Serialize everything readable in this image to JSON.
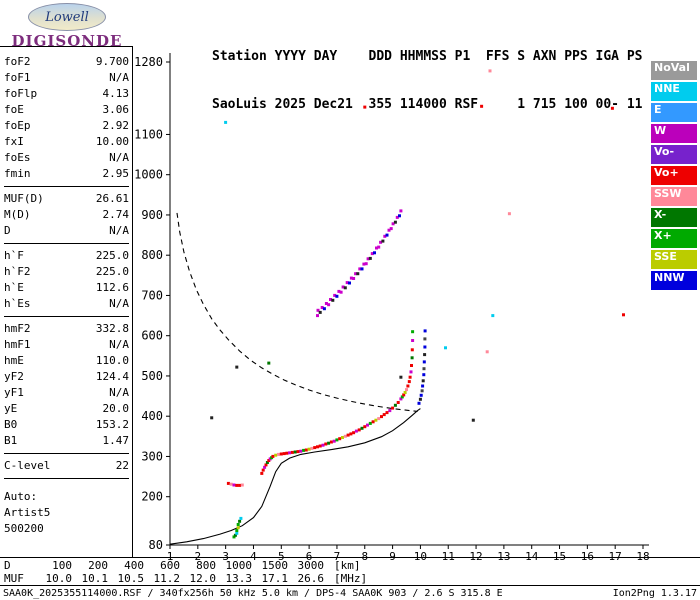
{
  "logo": {
    "brand": "Lowell",
    "product": "DIGISONDE"
  },
  "header": {
    "line1": "Station YYYY DAY    DDD HHMMSS P1  FFS S AXN PPS IGA PS",
    "line2": "SaoLuis 2025 Dec21  355 114000 RSF     1 715 100 00- 11"
  },
  "left_panel": {
    "groups": [
      {
        "rows": [
          [
            "foF2",
            "9.700"
          ],
          [
            "foF1",
            "N/A"
          ],
          [
            "foFlp",
            "4.13"
          ],
          [
            "foE",
            "3.06"
          ],
          [
            "foEp",
            "2.92"
          ],
          [
            "fxI",
            "10.00"
          ],
          [
            "foEs",
            "N/A"
          ],
          [
            "fmin",
            "2.95"
          ]
        ]
      },
      {
        "rows": [
          [
            "MUF(D)",
            "26.61"
          ],
          [
            "M(D)",
            "2.74"
          ],
          [
            "D",
            "N/A"
          ]
        ]
      },
      {
        "rows": [
          [
            "h`F",
            "225.0"
          ],
          [
            "h`F2",
            "225.0"
          ],
          [
            "h`E",
            "112.6"
          ],
          [
            "h`Es",
            "N/A"
          ]
        ]
      },
      {
        "rows": [
          [
            "hmF2",
            "332.8"
          ],
          [
            "hmF1",
            "N/A"
          ],
          [
            "hmE",
            "110.0"
          ],
          [
            "yF2",
            "124.4"
          ],
          [
            "yF1",
            "N/A"
          ],
          [
            "yE",
            "20.0"
          ],
          [
            "B0",
            "153.2"
          ],
          [
            "B1",
            "1.47"
          ]
        ]
      },
      {
        "rows": [
          [
            "C-level",
            "22"
          ]
        ]
      }
    ],
    "footer": [
      "Auto:",
      "Artist5",
      "500200"
    ]
  },
  "legend": [
    {
      "label": "NoVal",
      "color": "#9A9A9A"
    },
    {
      "label": "NNE",
      "color": "#00CCEE"
    },
    {
      "label": "E",
      "color": "#3399FF"
    },
    {
      "label": "W",
      "color": "#BB00BB"
    },
    {
      "label": "Vo-",
      "color": "#7722CC"
    },
    {
      "label": "Vo+",
      "color": "#EE0000"
    },
    {
      "label": "SSW",
      "color": "#FF8899"
    },
    {
      "label": "X-",
      "color": "#007700"
    },
    {
      "label": "X+",
      "color": "#00AA00"
    },
    {
      "label": "SSE",
      "color": "#BBCC00"
    },
    {
      "label": "NNW",
      "color": "#0000DD"
    }
  ],
  "chart_data": {
    "type": "scatter",
    "xlim": [
      1,
      18
    ],
    "ylim": [
      80,
      1280
    ],
    "x_ticks": [
      1,
      2,
      3,
      4,
      5,
      6,
      7,
      8,
      9,
      10,
      11,
      12,
      13,
      14,
      15,
      16,
      17,
      18
    ],
    "y_ticks": [
      80,
      200,
      300,
      400,
      500,
      600,
      700,
      800,
      900,
      1000,
      1100,
      1280
    ],
    "x_unit": "MHz",
    "y_unit": "km",
    "grid": false,
    "traces": [
      {
        "name": "f-trace-start",
        "palette": [
          "#EE0000",
          "#FF8899",
          "#CC00CC",
          "#EE0000"
        ],
        "points": [
          [
            3.1,
            233
          ],
          [
            3.2,
            231
          ],
          [
            3.3,
            229
          ],
          [
            3.4,
            228
          ],
          [
            3.5,
            228
          ],
          [
            3.6,
            229
          ]
        ]
      },
      {
        "name": "f-trace-o-mode",
        "palette": [
          "#EE0000",
          "#EE0000",
          "#CC00CC",
          "#EE0000",
          "#007700",
          "#EE0000",
          "#CC00CC",
          "#00AA00",
          "#EE0000",
          "#BBCC00",
          "#FF8899",
          "#EE0000"
        ],
        "points": [
          [
            4.3,
            258
          ],
          [
            4.35,
            266
          ],
          [
            4.4,
            273
          ],
          [
            4.45,
            279
          ],
          [
            4.5,
            285
          ],
          [
            4.55,
            290
          ],
          [
            4.6,
            294
          ],
          [
            4.65,
            297
          ],
          [
            4.7,
            300
          ],
          [
            4.8,
            303
          ],
          [
            4.9,
            305
          ],
          [
            5.0,
            306
          ],
          [
            5.1,
            307
          ],
          [
            5.2,
            308
          ],
          [
            5.3,
            309
          ],
          [
            5.4,
            310
          ],
          [
            5.5,
            311
          ],
          [
            5.6,
            312
          ],
          [
            5.7,
            313
          ],
          [
            5.8,
            315
          ],
          [
            5.9,
            316
          ],
          [
            6.0,
            318
          ],
          [
            6.1,
            320
          ],
          [
            6.2,
            322
          ],
          [
            6.3,
            324
          ],
          [
            6.4,
            326
          ],
          [
            6.5,
            328
          ],
          [
            6.6,
            331
          ],
          [
            6.7,
            333
          ],
          [
            6.8,
            336
          ],
          [
            6.9,
            338
          ],
          [
            7.0,
            341
          ],
          [
            7.1,
            344
          ],
          [
            7.2,
            347
          ],
          [
            7.3,
            350
          ],
          [
            7.4,
            353
          ],
          [
            7.5,
            356
          ],
          [
            7.6,
            359
          ],
          [
            7.7,
            363
          ],
          [
            7.8,
            366
          ],
          [
            7.9,
            370
          ],
          [
            8.0,
            374
          ],
          [
            8.1,
            378
          ],
          [
            8.2,
            382
          ],
          [
            8.3,
            386
          ],
          [
            8.4,
            390
          ],
          [
            8.5,
            394
          ],
          [
            8.6,
            399
          ],
          [
            8.7,
            404
          ],
          [
            8.8,
            409
          ],
          [
            8.9,
            414
          ],
          [
            9.0,
            420
          ],
          [
            9.1,
            427
          ],
          [
            9.2,
            434
          ],
          [
            9.3,
            443
          ],
          [
            9.35,
            448
          ],
          [
            9.4,
            453
          ],
          [
            9.45,
            459
          ],
          [
            9.5,
            466
          ],
          [
            9.55,
            475
          ],
          [
            9.6,
            486
          ],
          [
            9.63,
            497
          ],
          [
            9.66,
            510
          ],
          [
            9.68,
            526
          ],
          [
            9.7,
            545
          ],
          [
            9.71,
            565
          ],
          [
            9.72,
            588
          ],
          [
            9.72,
            610
          ]
        ]
      },
      {
        "name": "f-trace-x-mode",
        "palette": [
          "#0000DD",
          "#222222",
          "#0000DD",
          "#444444"
        ],
        "points": [
          [
            9.95,
            432
          ],
          [
            10.0,
            442
          ],
          [
            10.03,
            452
          ],
          [
            10.06,
            463
          ],
          [
            10.08,
            475
          ],
          [
            10.1,
            488
          ],
          [
            10.12,
            503
          ],
          [
            10.13,
            518
          ],
          [
            10.14,
            535
          ],
          [
            10.15,
            553
          ],
          [
            10.16,
            572
          ],
          [
            10.16,
            592
          ],
          [
            10.17,
            612
          ]
        ]
      },
      {
        "name": "second-hop-trace",
        "palette": [
          "#CC00CC",
          "#CC00CC",
          "#222222",
          "#CC00CC",
          "#0000DD",
          "#CC00CC"
        ],
        "points": [
          [
            6.3,
            650
          ],
          [
            6.32,
            663
          ],
          [
            6.4,
            658
          ],
          [
            6.47,
            670
          ],
          [
            6.55,
            667
          ],
          [
            6.62,
            680
          ],
          [
            6.7,
            677
          ],
          [
            6.77,
            690
          ],
          [
            6.85,
            688
          ],
          [
            6.92,
            700
          ],
          [
            7.0,
            698
          ],
          [
            7.07,
            710
          ],
          [
            7.15,
            708
          ],
          [
            7.22,
            721
          ],
          [
            7.3,
            719
          ],
          [
            7.37,
            732
          ],
          [
            7.45,
            731
          ],
          [
            7.52,
            743
          ],
          [
            7.6,
            742
          ],
          [
            7.67,
            754
          ],
          [
            7.75,
            754
          ],
          [
            7.82,
            766
          ],
          [
            7.9,
            766
          ],
          [
            7.97,
            778
          ],
          [
            8.05,
            779
          ],
          [
            8.12,
            791
          ],
          [
            8.2,
            792
          ],
          [
            8.27,
            804
          ],
          [
            8.35,
            806
          ],
          [
            8.42,
            818
          ],
          [
            8.5,
            820
          ],
          [
            8.57,
            832
          ],
          [
            8.65,
            835
          ],
          [
            8.72,
            847
          ],
          [
            8.8,
            850
          ],
          [
            8.87,
            862
          ],
          [
            8.95,
            866
          ],
          [
            9.02,
            878
          ],
          [
            9.1,
            882
          ],
          [
            9.17,
            894
          ],
          [
            9.25,
            898
          ],
          [
            9.3,
            910
          ]
        ]
      },
      {
        "name": "e-region-trace",
        "palette": [
          "#00AA00",
          "#007700",
          "#00CCEE",
          "#00AA00",
          "#BBCC00"
        ],
        "points": [
          [
            3.3,
            100
          ],
          [
            3.35,
            104
          ],
          [
            3.4,
            109
          ],
          [
            3.4,
            116
          ],
          [
            3.45,
            123
          ],
          [
            3.45,
            131
          ],
          [
            3.5,
            139
          ],
          [
            3.55,
            146
          ]
        ]
      }
    ],
    "lines": [
      {
        "name": "true-height-profile-line",
        "style": "solid",
        "color": "#000000",
        "points": [
          [
            1.0,
            82
          ],
          [
            1.6,
            88
          ],
          [
            2.2,
            96
          ],
          [
            2.8,
            107
          ],
          [
            3.2,
            116
          ],
          [
            3.6,
            128
          ],
          [
            4.0,
            148
          ],
          [
            4.3,
            176
          ],
          [
            4.6,
            226
          ],
          [
            4.8,
            262
          ],
          [
            5.0,
            283
          ],
          [
            5.3,
            296
          ],
          [
            5.7,
            305
          ],
          [
            6.2,
            311
          ],
          [
            6.8,
            317
          ],
          [
            7.4,
            324
          ],
          [
            8.0,
            334
          ],
          [
            8.6,
            349
          ],
          [
            9.0,
            364
          ],
          [
            9.4,
            384
          ],
          [
            9.7,
            402
          ],
          [
            9.9,
            414
          ],
          [
            10.0,
            419
          ]
        ]
      },
      {
        "name": "muf-transmission-curve",
        "style": "dashed",
        "color": "#000000",
        "points": [
          [
            1.25,
            905
          ],
          [
            1.35,
            858
          ],
          [
            1.5,
            808
          ],
          [
            1.7,
            760
          ],
          [
            1.95,
            714
          ],
          [
            2.2,
            678
          ],
          [
            2.5,
            642
          ],
          [
            2.8,
            614
          ],
          [
            3.1,
            590
          ],
          [
            3.5,
            562
          ],
          [
            3.9,
            539
          ],
          [
            4.3,
            520
          ],
          [
            4.7,
            504
          ],
          [
            5.1,
            490
          ],
          [
            5.5,
            478
          ],
          [
            6.0,
            465
          ],
          [
            6.5,
            454
          ],
          [
            7.0,
            445
          ],
          [
            7.5,
            437
          ],
          [
            8.0,
            430
          ],
          [
            8.5,
            424
          ],
          [
            9.0,
            419
          ],
          [
            9.5,
            415
          ],
          [
            9.9,
            412
          ]
        ]
      }
    ],
    "noise_points": [
      [
        3.0,
        1130,
        "#00CCEE"
      ],
      [
        8.0,
        1168,
        "#EE0000"
      ],
      [
        12.5,
        1258,
        "#FF8899"
      ],
      [
        12.2,
        1170,
        "#EE0000"
      ],
      [
        16.9,
        1165,
        "#EE0000"
      ],
      [
        13.2,
        903,
        "#FF8899"
      ],
      [
        12.6,
        650,
        "#00CCEE"
      ],
      [
        17.3,
        652,
        "#EE0000"
      ],
      [
        10.9,
        570,
        "#00CCEE"
      ],
      [
        12.4,
        560,
        "#FF8899"
      ],
      [
        9.3,
        497,
        "#222222"
      ],
      [
        2.5,
        396,
        "#222222"
      ],
      [
        11.9,
        390,
        "#222222"
      ],
      [
        4.55,
        532,
        "#007700"
      ],
      [
        3.4,
        522,
        "#222222"
      ]
    ]
  },
  "dmuf": {
    "d_label": "D",
    "d_values": [
      "100",
      "200",
      "400",
      "600",
      "800",
      "1000",
      "1500",
      "3000"
    ],
    "d_unit": "[km]",
    "muf_label": "MUF",
    "muf_values": [
      "10.0",
      "10.1",
      "10.5",
      "11.2",
      "12.0",
      "13.3",
      "17.1",
      "26.6"
    ],
    "muf_unit": "[MHz]"
  },
  "status": {
    "left": "SAA0K_2025355114000.RSF / 340fx256h 50 kHz 5.0 km / DPS-4 SAA0K 903 / 2.6 S 315.8 E",
    "right": "Ion2Png 1.3.17"
  }
}
